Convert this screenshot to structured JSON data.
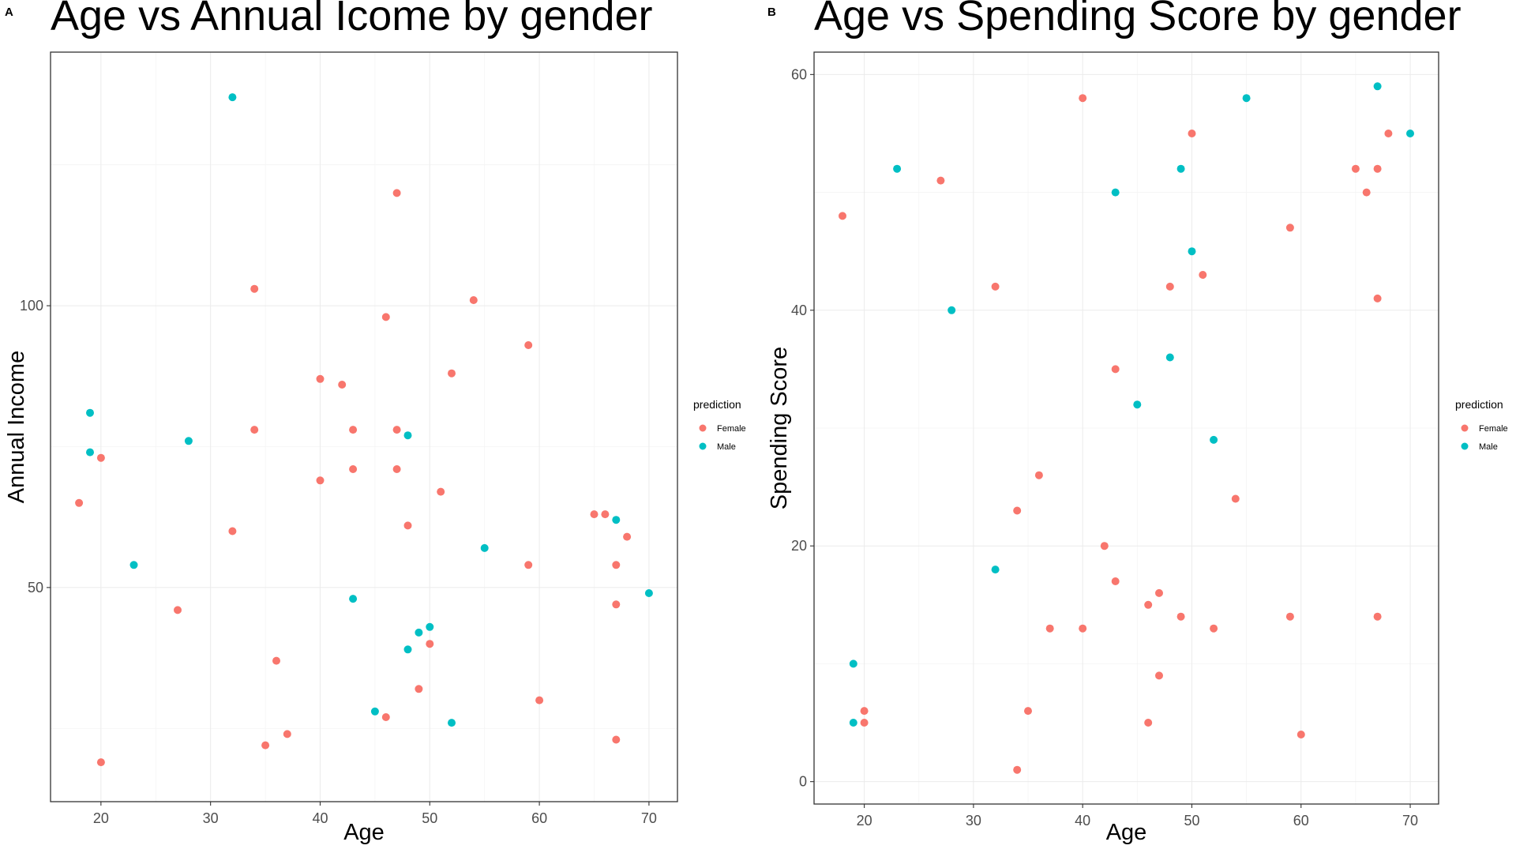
{
  "colors": {
    "Female": "#F8766D",
    "Male": "#00BFC4"
  },
  "chart_data": [
    {
      "panel": "A",
      "type": "scatter",
      "title": "Age vs Annual Icome by gender",
      "xlabel": "Age",
      "ylabel": "Annual Income",
      "xlim": [
        15.4,
        72.6
      ],
      "ylim": [
        12,
        145
      ],
      "xticks": [
        20,
        30,
        40,
        50,
        60,
        70
      ],
      "yticks": [
        50,
        100
      ],
      "xminor": [
        25,
        35,
        45,
        55,
        65
      ],
      "yminor": [
        25,
        75,
        125
      ],
      "grid": true,
      "legend": {
        "title": "prediction",
        "entries": [
          "Female",
          "Male"
        ],
        "position": "right"
      },
      "series": [
        {
          "name": "Female",
          "points": [
            [
              18,
              65
            ],
            [
              20,
              73
            ],
            [
              20,
              19
            ],
            [
              27,
              46
            ],
            [
              32,
              60
            ],
            [
              34,
              103
            ],
            [
              34,
              78
            ],
            [
              35,
              22
            ],
            [
              36,
              37
            ],
            [
              37,
              24
            ],
            [
              40,
              87
            ],
            [
              40,
              69
            ],
            [
              42,
              86
            ],
            [
              43,
              78
            ],
            [
              43,
              71
            ],
            [
              46,
              98
            ],
            [
              46,
              27
            ],
            [
              47,
              120
            ],
            [
              47,
              78
            ],
            [
              47,
              71
            ],
            [
              48,
              61
            ],
            [
              49,
              32
            ],
            [
              50,
              40
            ],
            [
              51,
              67
            ],
            [
              52,
              88
            ],
            [
              54,
              101
            ],
            [
              59,
              93
            ],
            [
              59,
              54
            ],
            [
              60,
              30
            ],
            [
              65,
              63
            ],
            [
              66,
              63
            ],
            [
              67,
              54
            ],
            [
              67,
              47
            ],
            [
              67,
              23
            ],
            [
              68,
              59
            ]
          ]
        },
        {
          "name": "Male",
          "points": [
            [
              19,
              81
            ],
            [
              19,
              74
            ],
            [
              23,
              54
            ],
            [
              28,
              76
            ],
            [
              32,
              137
            ],
            [
              43,
              48
            ],
            [
              45,
              28
            ],
            [
              48,
              77
            ],
            [
              48,
              39
            ],
            [
              49,
              42
            ],
            [
              50,
              43
            ],
            [
              52,
              26
            ],
            [
              55,
              57
            ],
            [
              67,
              62
            ],
            [
              70,
              49
            ]
          ]
        }
      ]
    },
    {
      "panel": "B",
      "type": "scatter",
      "title": "Age vs Spending Score by gender",
      "xlabel": "Age",
      "ylabel": "Spending Score",
      "xlim": [
        15.4,
        72.6
      ],
      "ylim": [
        -1.9,
        61.9
      ],
      "xticks": [
        20,
        30,
        40,
        50,
        60,
        70
      ],
      "yticks": [
        0,
        20,
        40,
        60
      ],
      "xminor": [
        25,
        35,
        45,
        55,
        65
      ],
      "yminor": [
        10,
        30,
        50
      ],
      "grid": true,
      "legend": {
        "title": "prediction",
        "entries": [
          "Female",
          "Male"
        ],
        "position": "right"
      },
      "series": [
        {
          "name": "Female",
          "points": [
            [
              18,
              48
            ],
            [
              20,
              6
            ],
            [
              20,
              5
            ],
            [
              27,
              51
            ],
            [
              32,
              42
            ],
            [
              34,
              23
            ],
            [
              34,
              1
            ],
            [
              35,
              6
            ],
            [
              36,
              26
            ],
            [
              37,
              13
            ],
            [
              40,
              58
            ],
            [
              40,
              13
            ],
            [
              42,
              20
            ],
            [
              43,
              35
            ],
            [
              43,
              17
            ],
            [
              46,
              15
            ],
            [
              46,
              5
            ],
            [
              47,
              16
            ],
            [
              47,
              9
            ],
            [
              48,
              42
            ],
            [
              49,
              14
            ],
            [
              50,
              55
            ],
            [
              51,
              43
            ],
            [
              52,
              13
            ],
            [
              54,
              24
            ],
            [
              59,
              47
            ],
            [
              59,
              14
            ],
            [
              60,
              4
            ],
            [
              65,
              52
            ],
            [
              66,
              50
            ],
            [
              67,
              52
            ],
            [
              67,
              41
            ],
            [
              67,
              14
            ],
            [
              68,
              55
            ]
          ]
        },
        {
          "name": "Male",
          "points": [
            [
              19,
              10
            ],
            [
              19,
              5
            ],
            [
              23,
              52
            ],
            [
              28,
              40
            ],
            [
              32,
              18
            ],
            [
              43,
              50
            ],
            [
              45,
              32
            ],
            [
              48,
              36
            ],
            [
              49,
              52
            ],
            [
              50,
              45
            ],
            [
              52,
              29
            ],
            [
              55,
              58
            ],
            [
              67,
              59
            ],
            [
              70,
              55
            ]
          ]
        }
      ]
    }
  ]
}
